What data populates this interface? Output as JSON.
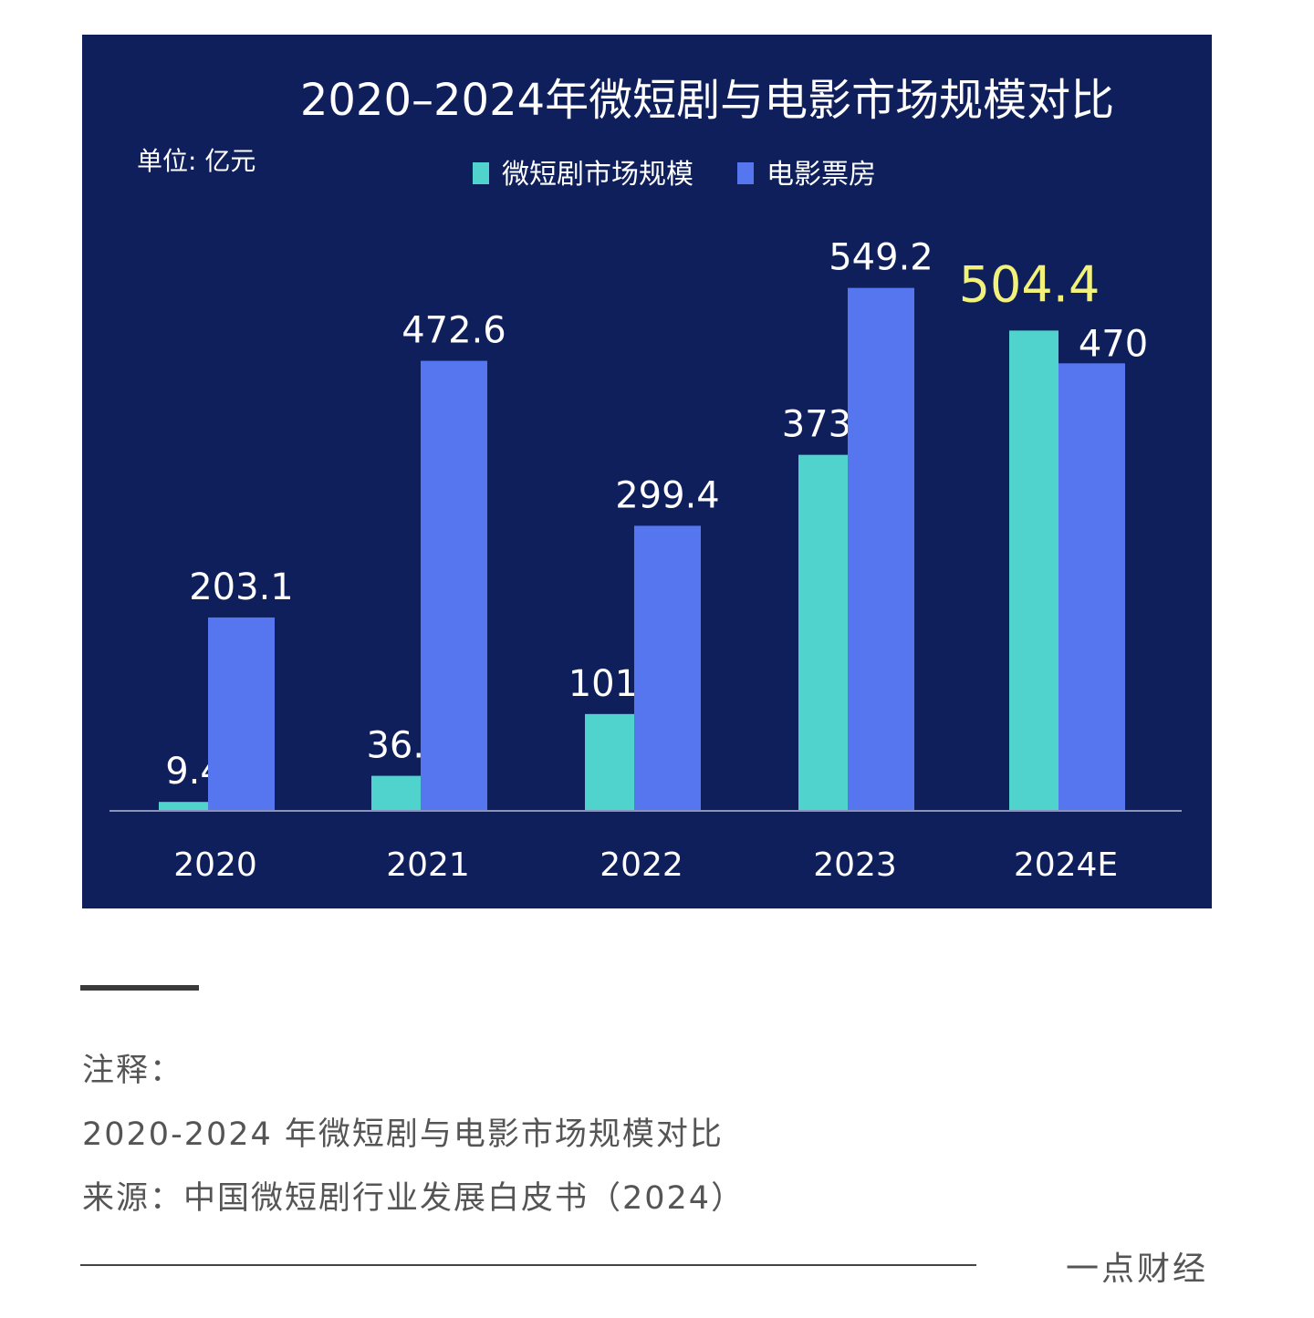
{
  "chart_data": {
    "type": "bar",
    "title": "2020–2024年微短剧与电影市场规模对比",
    "unit_label": "单位: 亿元",
    "categories": [
      "2020",
      "2021",
      "2022",
      "2023",
      "2024E"
    ],
    "series": [
      {
        "name": "微短剧市场规模",
        "color": "#4fd3cc",
        "values": [
          9.4,
          36.8,
          101.7,
          373.9,
          504.4
        ]
      },
      {
        "name": "电影票房",
        "color": "#5576ee",
        "values": [
          203.1,
          472.6,
          299.4,
          549.2,
          470
        ]
      }
    ],
    "ylim": [
      0,
      600
    ],
    "grid": false,
    "legend": "top-center",
    "highlight_color": "#f2f27a",
    "background": "#0f1f5c"
  },
  "notes": {
    "label": "注释：",
    "line1": "2020-2024 年微短剧与电影市场规模对比",
    "line2": "来源：中国微短剧行业发展白皮书（2024）"
  },
  "brand": "一点财经"
}
